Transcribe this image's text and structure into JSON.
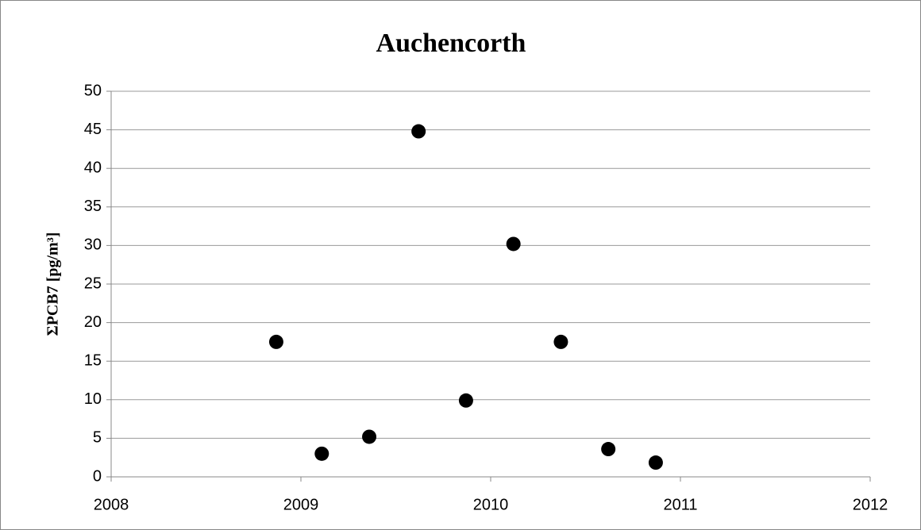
{
  "chart_data": {
    "type": "scatter",
    "title": "Auchencorth",
    "y_label": "ΣPCB7 [pg/m³]",
    "x": [
      2008.87,
      2009.11,
      2009.36,
      2009.62,
      2009.87,
      2010.12,
      2010.37,
      2010.62,
      2010.87
    ],
    "values": [
      17.5,
      3.0,
      5.2,
      44.8,
      9.9,
      30.2,
      17.5,
      3.6,
      1.85
    ],
    "color": "#000000",
    "xlim": [
      2008,
      2012
    ],
    "xticks": [
      2008,
      2009,
      2010,
      2011,
      2012
    ],
    "ylim": [
      0,
      50
    ],
    "yticks": [
      0,
      5,
      10,
      15,
      20,
      25,
      30,
      35,
      40,
      45,
      50
    ],
    "grid": true
  }
}
